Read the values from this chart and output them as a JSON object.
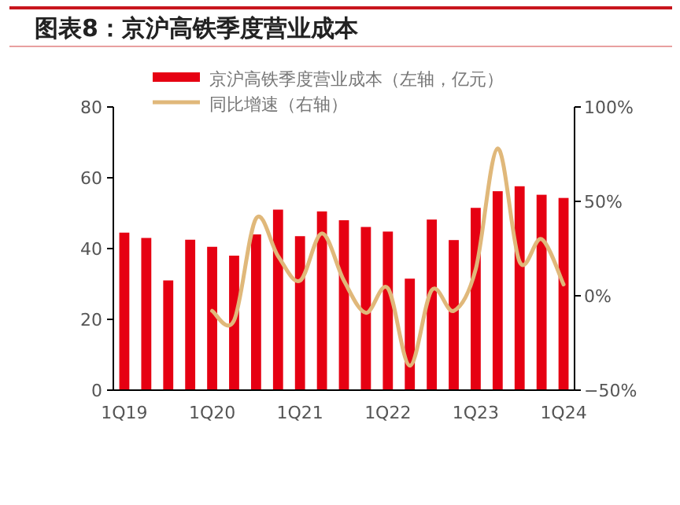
{
  "chart_data": {
    "type": "bar",
    "title": "图表8：京沪高铁季度营业成本",
    "categories": [
      "1Q19",
      null,
      null,
      null,
      "1Q20",
      null,
      null,
      null,
      "1Q21",
      null,
      null,
      null,
      "1Q22",
      null,
      null,
      null,
      "1Q23",
      null,
      null,
      null,
      "1Q24"
    ],
    "series": [
      {
        "name": "京沪高铁季度营业成本（左轴，亿元）",
        "color": "#e60012",
        "values": [
          44.5,
          43,
          31,
          42.5,
          40.5,
          38,
          44,
          51,
          43.5,
          50.5,
          48,
          46.1,
          44.8,
          31.5,
          48.2,
          42.4,
          51.5,
          56.2,
          57.6,
          55.2,
          54.3
        ]
      },
      {
        "name": "同比增速（右轴）",
        "type": "line",
        "axis": "y2",
        "color": "#e0b87a",
        "values": [
          null,
          null,
          null,
          null,
          -8,
          -13,
          41,
          21,
          8,
          33,
          8,
          -9,
          4,
          -37,
          3,
          -8,
          14,
          78,
          18,
          30,
          6
        ]
      }
    ],
    "ylim": [
      0,
      80
    ],
    "yticks": [
      0,
      20,
      40,
      60,
      80
    ],
    "y2lim": [
      -50,
      100
    ],
    "y2ticks": [
      {
        "value": -50,
        "label": "−50%"
      },
      {
        "value": 0,
        "label": "0%"
      },
      {
        "value": 50,
        "label": "50%"
      },
      {
        "value": 100,
        "label": "100%"
      }
    ],
    "legend": "top",
    "grid": false
  }
}
